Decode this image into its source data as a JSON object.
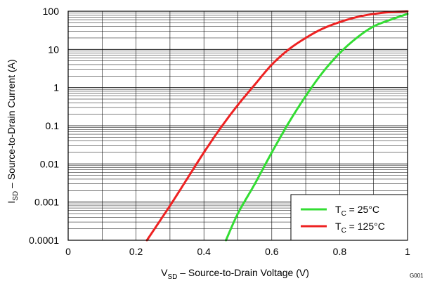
{
  "chart_data": {
    "type": "line",
    "xlabel": {
      "main": "V",
      "sub": "SD",
      "rest": " – Source-to-Drain Voltage (V)"
    },
    "ylabel": {
      "main": "I",
      "sub": "SD",
      "rest": " – Source-to-Drain Current (A)"
    },
    "xlim": [
      0,
      1
    ],
    "ylim": [
      0.0001,
      100
    ],
    "yscale": "log",
    "grid": true,
    "x_ticks": [
      "0",
      "0.2",
      "0.4",
      "0.6",
      "0.8",
      "1"
    ],
    "y_ticks": [
      "0.0001",
      "0.001",
      "0.01",
      "0.1",
      "1",
      "10",
      "100"
    ],
    "legend_position": "bottom-right",
    "figure_code": "G001",
    "series": [
      {
        "name": {
          "main": "T",
          "sub": "C",
          "rest": " = 25°C"
        },
        "color": "#33dd33",
        "x": [
          0.465,
          0.5,
          0.55,
          0.6,
          0.65,
          0.7,
          0.75,
          0.8,
          0.85,
          0.9,
          0.95,
          1.0
        ],
        "y": [
          0.0001,
          0.0005,
          0.003,
          0.02,
          0.12,
          0.6,
          2.5,
          8,
          20,
          40,
          60,
          85
        ]
      },
      {
        "name": {
          "main": "T",
          "sub": "C",
          "rest": " = 125°C"
        },
        "color": "#ee2222",
        "x": [
          0.232,
          0.3,
          0.35,
          0.4,
          0.45,
          0.5,
          0.55,
          0.6,
          0.65,
          0.7,
          0.75,
          0.8,
          0.85,
          0.9,
          0.95,
          1.0
        ],
        "y": [
          0.0001,
          0.0008,
          0.004,
          0.02,
          0.09,
          0.35,
          1.2,
          4,
          10,
          20,
          35,
          52,
          70,
          85,
          95,
          100
        ]
      }
    ]
  }
}
